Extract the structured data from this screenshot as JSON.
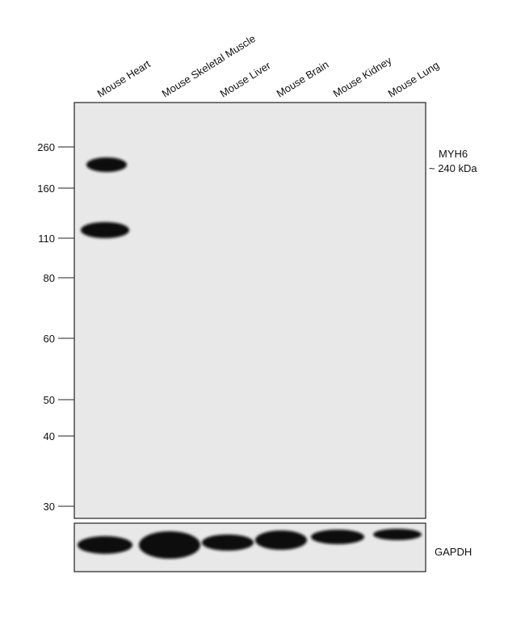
{
  "lanes": [
    "Mouse Heart",
    "Mouse Skeletal Muscle",
    "Mouse Liver",
    "Mouse Brain",
    "Mouse Kidney",
    "Mouse Lung"
  ],
  "markers": [
    260,
    160,
    110,
    80,
    60,
    50,
    40,
    30
  ],
  "annotation": {
    "target": "MYH6",
    "size": "~ 240 kDa"
  },
  "loading_control": "GAPDH"
}
